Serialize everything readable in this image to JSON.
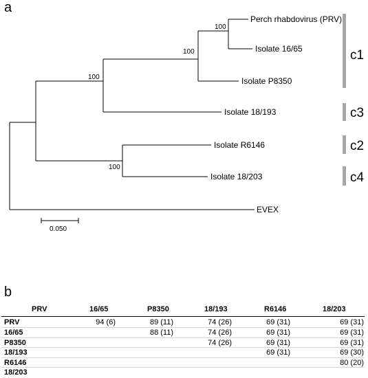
{
  "panels": {
    "a": "a",
    "b": "b"
  },
  "tree": {
    "tips": [
      {
        "key": "prv",
        "label": "Perch rhabdovirus (PRV)"
      },
      {
        "key": "i1665",
        "label": "Isolate 16/65"
      },
      {
        "key": "p8350",
        "label": "Isolate P8350"
      },
      {
        "key": "i18193",
        "label": "Isolate 18/193"
      },
      {
        "key": "r6146",
        "label": "Isolate R6146"
      },
      {
        "key": "i18203",
        "label": "Isolate 18/203"
      },
      {
        "key": "evex",
        "label": "EVEX"
      }
    ],
    "bootstrap": [
      {
        "key": "bs_prv_1665",
        "label": "100"
      },
      {
        "key": "bs_prv_p8350",
        "label": "100"
      },
      {
        "key": "bs_c1_c3",
        "label": "100"
      },
      {
        "key": "bs_c2_c4",
        "label": "100"
      }
    ],
    "clusters": [
      {
        "key": "c1",
        "label": "c1"
      },
      {
        "key": "c3",
        "label": "c3"
      },
      {
        "key": "c2",
        "label": "c2"
      },
      {
        "key": "c4",
        "label": "c4"
      }
    ],
    "scale_label": "0.050"
  },
  "table": {
    "columns": [
      "PRV",
      "16/65",
      "P8350",
      "18/193",
      "R6146",
      "18/203"
    ],
    "rows": [
      {
        "label": "PRV",
        "cells": [
          "",
          "94 (6)",
          "89 (11)",
          "74 (26)",
          "69 (31)",
          "69 (31)"
        ]
      },
      {
        "label": "16/65",
        "cells": [
          "",
          "",
          "88 (11)",
          "74 (26)",
          "69 (31)",
          "69 (31)"
        ]
      },
      {
        "label": "P8350",
        "cells": [
          "",
          "",
          "",
          "74 (26)",
          "69 (31)",
          "69 (31)"
        ]
      },
      {
        "label": "18/193",
        "cells": [
          "",
          "",
          "",
          "",
          "69 (31)",
          "69 (30)"
        ]
      },
      {
        "label": "R6146",
        "cells": [
          "",
          "",
          "",
          "",
          "",
          "80 (20)"
        ]
      },
      {
        "label": "18/203",
        "cells": [
          "",
          "",
          "",
          "",
          "",
          ""
        ]
      }
    ]
  },
  "colors": {
    "line": "#000000",
    "cluster_bar": "#a6a6a6",
    "row_rule": "#d9d9d9"
  }
}
